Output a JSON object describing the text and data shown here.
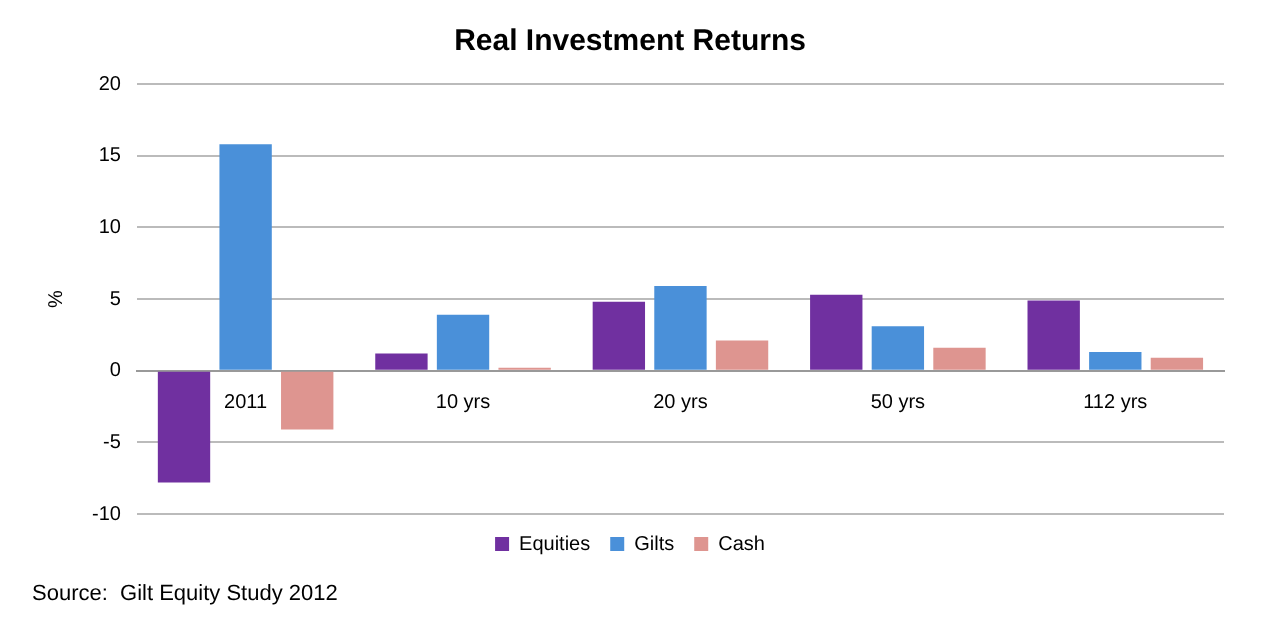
{
  "chart_data": {
    "type": "bar",
    "title": "Real Investment Returns",
    "ylabel": "%",
    "categories": [
      "2011",
      "10 yrs",
      "20 yrs",
      "50 yrs",
      "112 yrs"
    ],
    "series": [
      {
        "name": "Equities",
        "color": "#7030a0",
        "values": [
          -7.8,
          1.2,
          4.8,
          5.3,
          4.9
        ]
      },
      {
        "name": "Gilts",
        "color": "#4a90d9",
        "values": [
          15.8,
          3.9,
          5.9,
          3.1,
          1.3
        ]
      },
      {
        "name": "Cash",
        "color": "#de9590",
        "values": [
          -4.1,
          0.2,
          2.1,
          1.6,
          0.9
        ]
      }
    ],
    "ylim": [
      -10,
      20
    ],
    "yticks": [
      -10,
      -5,
      0,
      5,
      10,
      15,
      20
    ],
    "grid": "y",
    "legend": "bottom",
    "annotations": [
      "Source:  Gilt Equity Study 2012"
    ]
  }
}
